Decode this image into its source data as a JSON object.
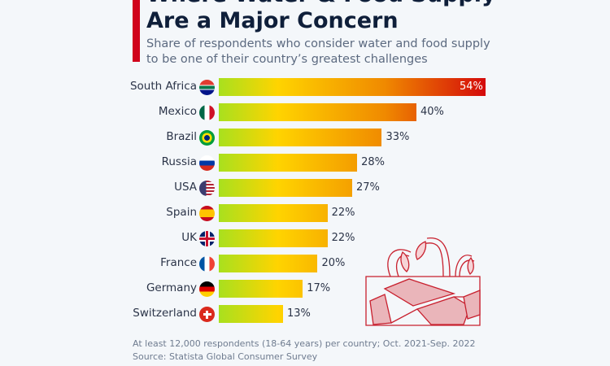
{
  "chart_data": {
    "type": "bar",
    "orientation": "horizontal",
    "title": "Where Water & Food Supply Are a Major Concern",
    "subtitle": "Share of respondents who consider water and food supply to be one of their country’s greatest challenges",
    "categories": [
      "South Africa",
      "Mexico",
      "Brazil",
      "Russia",
      "USA",
      "Spain",
      "UK",
      "France",
      "Germany",
      "Switzerland"
    ],
    "values": [
      54,
      40,
      33,
      28,
      27,
      22,
      22,
      20,
      17,
      13
    ],
    "labels": [
      "54%",
      "40%",
      "33%",
      "28%",
      "27%",
      "22%",
      "22%",
      "20%",
      "17%",
      "13%"
    ],
    "unit": "%",
    "xlim": [
      0,
      54
    ],
    "grid": false,
    "colors": {
      "gradient_start": "#a8e01e",
      "gradient_mid": "#ffd400",
      "gradient_orange": "#f08a00",
      "gradient_end": "#d40a0a",
      "accent": "#d0021b"
    },
    "flag_icons": [
      "south-africa-flag-icon",
      "mexico-flag-icon",
      "brazil-flag-icon",
      "russia-flag-icon",
      "usa-flag-icon",
      "spain-flag-icon",
      "uk-flag-icon",
      "france-flag-icon",
      "germany-flag-icon",
      "switzerland-flag-icon"
    ]
  },
  "title_line1": "Where Water & Food Supply",
  "title_line2": "Are a Major Concern",
  "subtitle_line1": "Share of respondents who consider water and food supply",
  "subtitle_line2": "to be one of their country’s greatest challenges",
  "footnote": "At least 12,000 respondents (18-64 years) per country; Oct. 2021-Sep. 2022",
  "source": "Source: Statista Global Consumer Survey",
  "illustration_icon": "drought-plants-cracked-soil-icon"
}
